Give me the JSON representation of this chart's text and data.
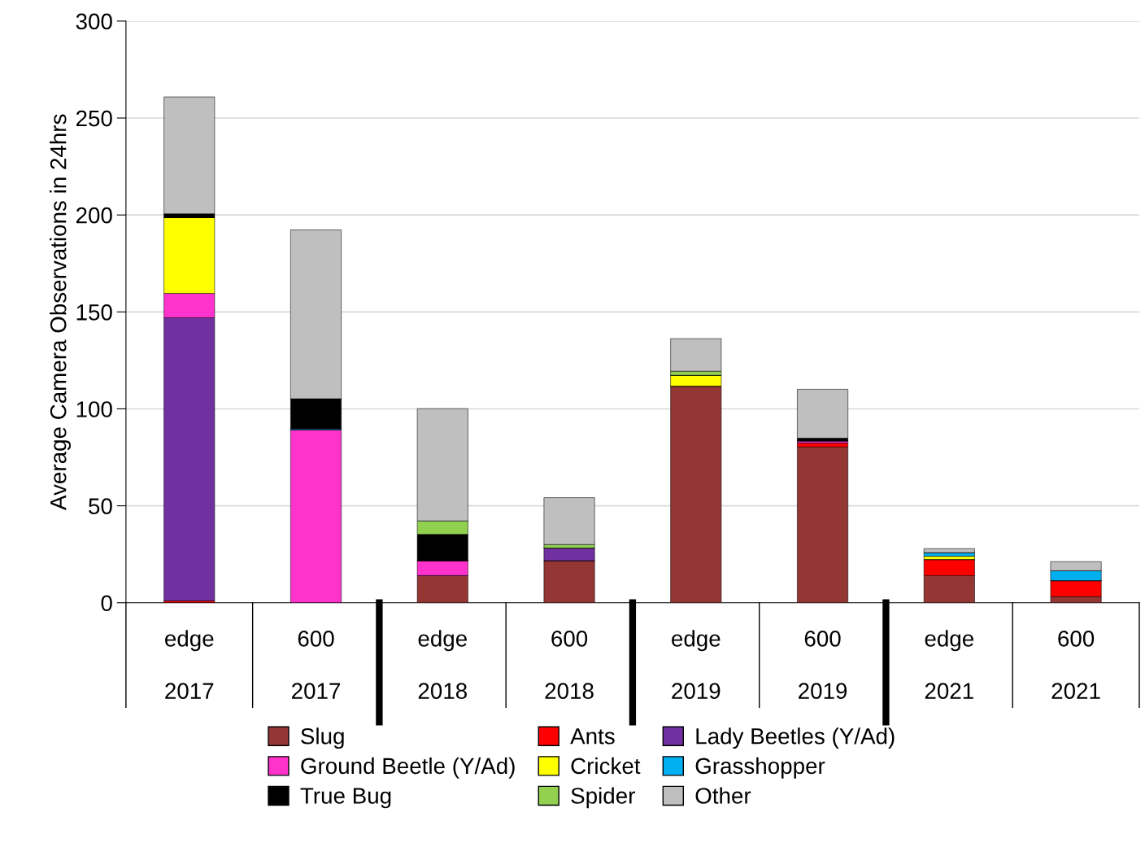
{
  "chart_data": {
    "type": "bar",
    "stacked": true,
    "ylabel": "Average Camera Observations in 24hrs",
    "categories": [
      "edge\n2017",
      "600\n2017",
      "edge\n2018",
      "600\n2018",
      "edge\n2019",
      "600\n2019",
      "edge\n2021",
      "600\n2021"
    ],
    "series": [
      {
        "name": "Slug",
        "color": "#943634",
        "values": [
          0,
          0,
          14,
          21.7,
          111.7,
          80.3,
          14,
          3.1
        ]
      },
      {
        "name": "Ants",
        "color": "#ff0000",
        "values": [
          1,
          0,
          0,
          0,
          0,
          2.1,
          8.3,
          8.3
        ]
      },
      {
        "name": "Lady Beetles (Y/Ad)",
        "color": "#7030a0",
        "values": [
          146,
          0,
          0,
          6.5,
          0,
          0,
          0,
          0
        ]
      },
      {
        "name": "Ground Beetle (Y/Ad)",
        "color": "#ff33cc",
        "values": [
          12.6,
          89.2,
          7.7,
          0,
          0,
          1.1,
          0,
          0
        ]
      },
      {
        "name": "Cricket",
        "color": "#ffff00",
        "values": [
          39,
          0,
          0,
          0,
          5.6,
          0,
          1.7,
          0
        ]
      },
      {
        "name": "Grasshopper",
        "color": "#00b0f0",
        "values": [
          0,
          0.5,
          0,
          0,
          0,
          0,
          1.8,
          5.1
        ]
      },
      {
        "name": "True Bug",
        "color": "#000000",
        "values": [
          2,
          15.5,
          13.6,
          0,
          0,
          1.4,
          0,
          0
        ]
      },
      {
        "name": "Spider",
        "color": "#92d050",
        "values": [
          0,
          0,
          6.9,
          1.8,
          2.1,
          0,
          0,
          0
        ]
      },
      {
        "name": "Other",
        "color": "#bfbfbf",
        "values": [
          60.3,
          87.1,
          57.9,
          24.2,
          16.8,
          25.2,
          2.1,
          4.7
        ]
      }
    ],
    "ylim": [
      0,
      300
    ],
    "yticks": [
      0,
      50,
      100,
      150,
      200,
      250,
      300
    ],
    "grid": "y",
    "legend": "bottom"
  }
}
